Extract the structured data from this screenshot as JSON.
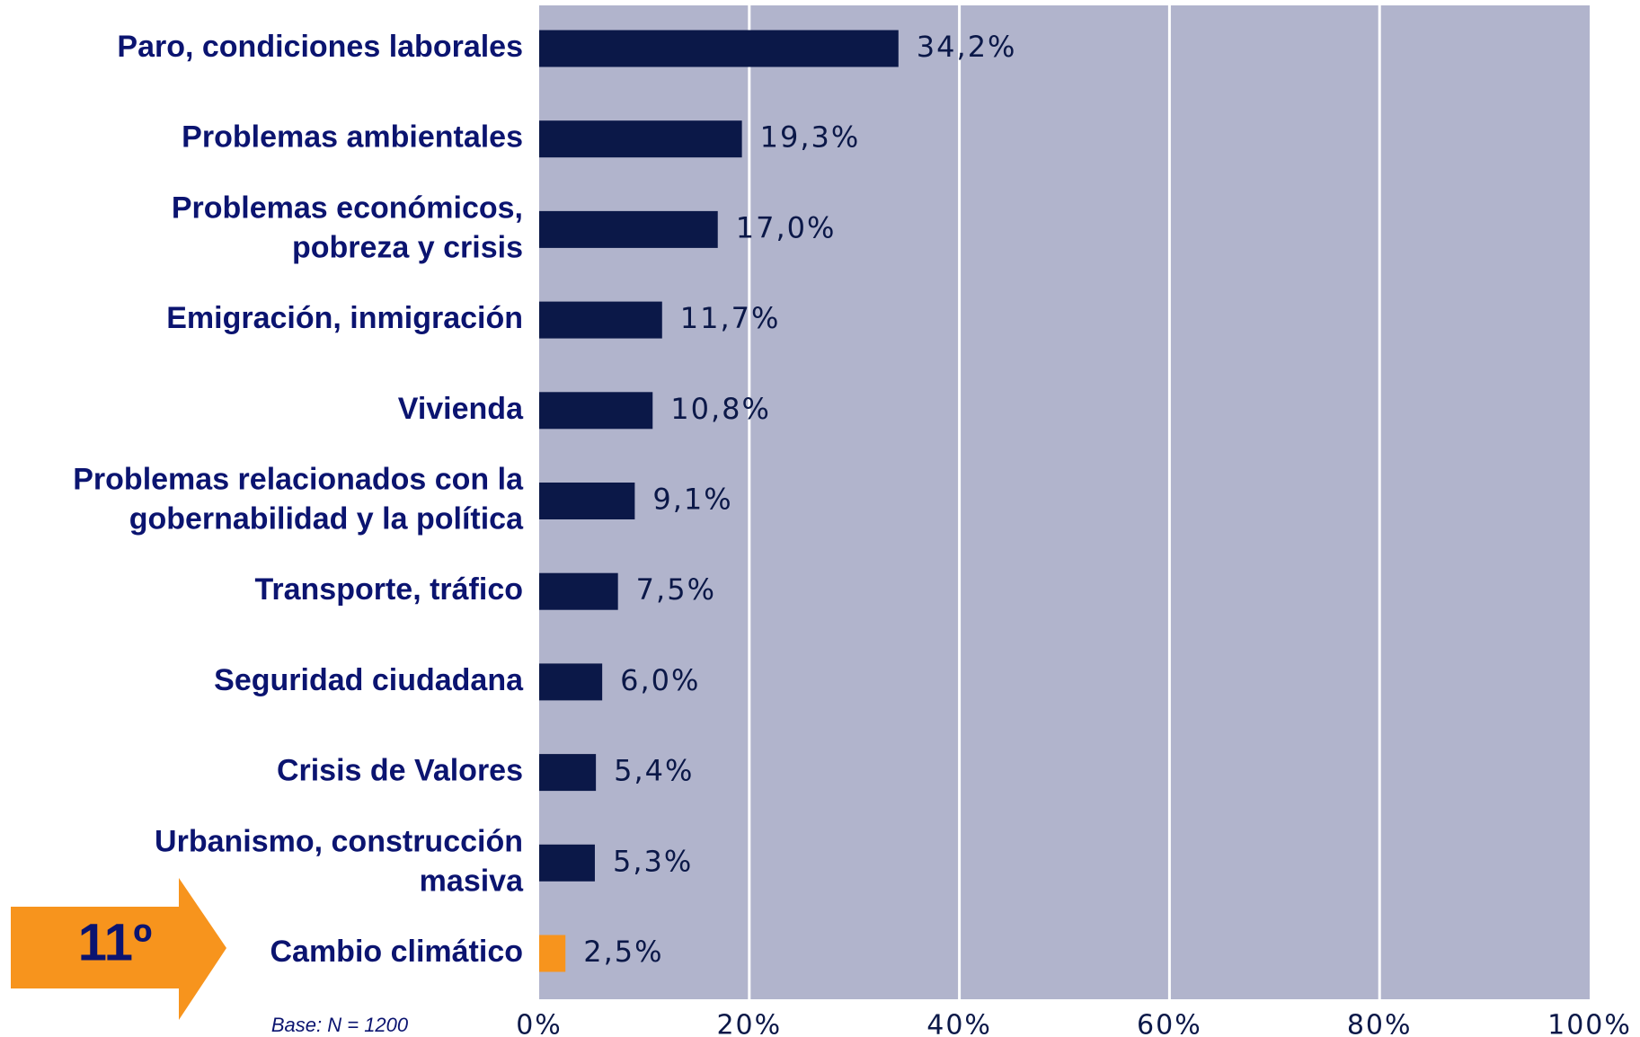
{
  "chart_data": {
    "type": "barh",
    "categories": [
      "Paro, condiciones laborales",
      "Problemas ambientales",
      "Problemas económicos,\npobreza y crisis",
      "Emigración, inmigración",
      "Vivienda",
      "Problemas relacionados con la\ngobernabilidad y la política",
      "Transporte, tráfico",
      "Seguridad ciudadana",
      "Crisis de Valores",
      "Urbanismo, construcción\nmasiva",
      "Cambio climático"
    ],
    "values": [
      34.2,
      19.3,
      17.0,
      11.7,
      10.8,
      9.1,
      7.5,
      6.0,
      5.4,
      5.3,
      2.5
    ],
    "value_labels": [
      "34,2%",
      "19,3%",
      "17,0%",
      "11,7%",
      "10,8%",
      "9,1%",
      "7,5%",
      "6,0%",
      "5,4%",
      "5,3%",
      "2,5%"
    ],
    "colors": [
      "#0b1848",
      "#0b1848",
      "#0b1848",
      "#0b1848",
      "#0b1848",
      "#0b1848",
      "#0b1848",
      "#0b1848",
      "#0b1848",
      "#0b1848",
      "#f7941d"
    ],
    "xlim": [
      0,
      100
    ],
    "xticks": [
      {
        "value": 0,
        "label": "0%"
      },
      {
        "value": 20,
        "label": "20%"
      },
      {
        "value": 40,
        "label": "40%"
      },
      {
        "value": 60,
        "label": "60%"
      },
      {
        "value": 80,
        "label": "80%"
      },
      {
        "value": 100,
        "label": "100%"
      }
    ],
    "grid": true,
    "annotations": [
      "11º",
      "Base: N = 1200"
    ]
  }
}
